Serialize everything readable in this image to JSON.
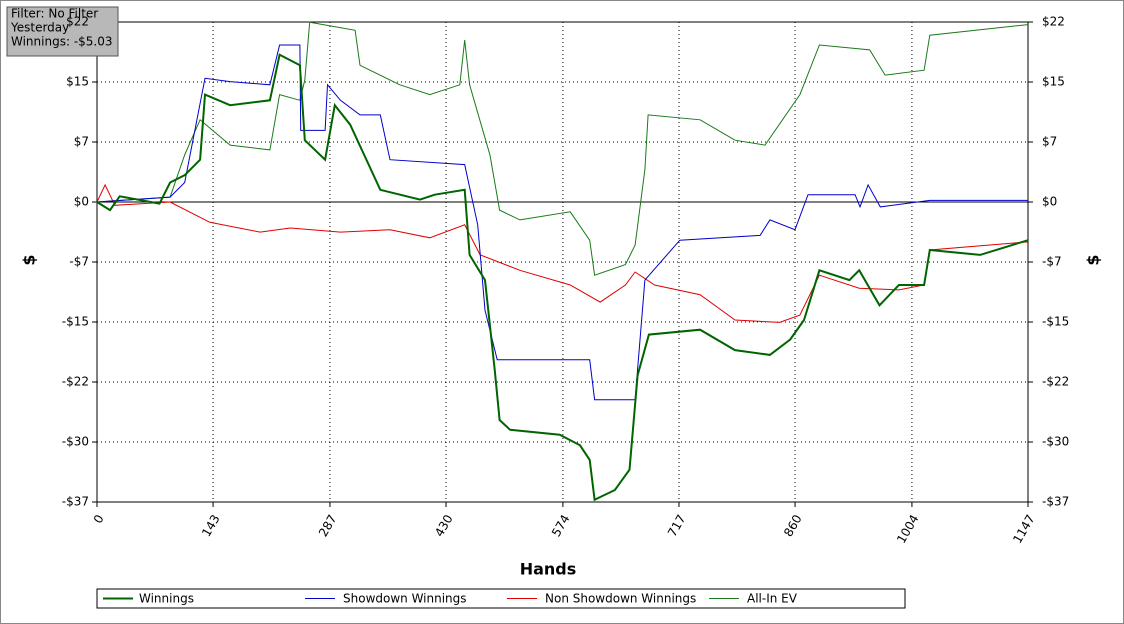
{
  "chart_data": {
    "type": "line",
    "info": [
      "Filter: No Filter",
      "Yesterday",
      "Winnings: -$5.03"
    ],
    "x_label": "Hands",
    "y_label": "$",
    "xlim": [
      0,
      1147
    ],
    "xticks": [
      0,
      143,
      287,
      430,
      574,
      717,
      860,
      1004,
      1147
    ],
    "ylim": [
      -36.875,
      22.125
    ],
    "yticks": [
      {
        "value": -36.875,
        "label": "-$37"
      },
      {
        "value": -29.5,
        "label": "-$30"
      },
      {
        "value": -22.125,
        "label": "-$22"
      },
      {
        "value": -14.75,
        "label": "-$15"
      },
      {
        "value": -7.375,
        "label": "-$7"
      },
      {
        "value": 0,
        "label": "$0"
      },
      {
        "value": 7.375,
        "label": "$7"
      },
      {
        "value": 14.75,
        "label": "$15"
      },
      {
        "value": 22.125,
        "label": "$22"
      }
    ],
    "grid": true,
    "series": [
      {
        "name": "Winnings",
        "color": "#006400",
        "width": 2,
        "x": [
          0,
          16,
          28,
          77,
          90,
          108,
          127,
          133,
          164,
          213,
          225,
          250,
          256,
          281,
          293,
          312,
          349,
          398,
          416,
          453,
          459,
          478,
          490,
          496,
          509,
          570,
          595,
          607,
          613,
          638,
          656,
          666,
          680,
          743,
          786,
          829,
          854,
          871,
          890,
          927,
          939,
          964,
          988,
          1019,
          1026,
          1088,
          1147
        ],
        "values": [
          0,
          -1,
          0.7,
          -0.2,
          2.4,
          3.3,
          5.2,
          13.2,
          11.9,
          12.5,
          18.1,
          16.8,
          7.6,
          5.2,
          11.9,
          9.5,
          1.5,
          0.3,
          0.9,
          1.5,
          -6.5,
          -9.6,
          -20.6,
          -26.8,
          -28,
          -28.6,
          -29.9,
          -31.7,
          -36.6,
          -35.4,
          -32.9,
          -21.3,
          -16.3,
          -15.7,
          -18.2,
          -18.8,
          -16.9,
          -14.5,
          -8.4,
          -9.6,
          -8.4,
          -12.7,
          -10.2,
          -10.2,
          -5.9,
          -6.5,
          -4.7
        ]
      },
      {
        "name": "Showdown Winnings",
        "color": "#0000cc",
        "width": 1,
        "x": [
          0,
          90,
          108,
          133,
          164,
          213,
          225,
          250,
          251,
          281,
          284,
          300,
          324,
          349,
          361,
          453,
          469,
          478,
          493,
          607,
          613,
          663,
          675,
          718,
          817,
          829,
          860,
          876,
          934,
          940,
          950,
          965,
          1026,
          1147
        ],
        "values": [
          0,
          0.6,
          2.4,
          15.2,
          14.8,
          14.4,
          19.3,
          19.3,
          8.8,
          8.8,
          14.4,
          12.5,
          10.7,
          10.7,
          5.2,
          4.6,
          -2.8,
          -13.3,
          -19.4,
          -19.4,
          -24.3,
          -24.3,
          -9.6,
          -4.7,
          -4.1,
          -2.2,
          -3.4,
          0.9,
          0.9,
          -0.6,
          2.1,
          -0.6,
          0.2,
          0.2
        ]
      },
      {
        "name": "Non Showdown Winnings",
        "color": "#e00000",
        "width": 1,
        "x": [
          0,
          10,
          22,
          90,
          139,
          201,
          238,
          300,
          361,
          410,
          453,
          472,
          521,
          583,
          620,
          651,
          663,
          687,
          743,
          786,
          841,
          866,
          890,
          939,
          988,
          1019,
          1026,
          1147
        ],
        "values": [
          0,
          2.1,
          -0.4,
          0,
          -2.5,
          -3.7,
          -3.2,
          -3.7,
          -3.4,
          -4.4,
          -2.8,
          -6.5,
          -8.4,
          -10.2,
          -12.3,
          -10.2,
          -8.6,
          -10.2,
          -11.4,
          -14.5,
          -14.8,
          -13.9,
          -9,
          -10.6,
          -10.8,
          -10.2,
          -5.9,
          -4.9
        ]
      },
      {
        "name": "All-In EV",
        "color": "#1a7a1a",
        "width": 1,
        "x": [
          0,
          90,
          108,
          127,
          164,
          213,
          225,
          250,
          256,
          262,
          318,
          324,
          373,
          410,
          447,
          453,
          459,
          484,
          496,
          521,
          583,
          607,
          613,
          651,
          663,
          675,
          679,
          743,
          786,
          823,
          866,
          890,
          952,
          971,
          1019,
          1026,
          1147
        ],
        "values": [
          0,
          0.6,
          5.8,
          10.1,
          7,
          6.4,
          13.2,
          12.5,
          15,
          22.1,
          21.1,
          16.8,
          14.4,
          13.2,
          14.4,
          19.9,
          14.4,
          5.8,
          -1,
          -2.2,
          -1.2,
          -4.7,
          -9,
          -7.7,
          -5.3,
          4,
          10.7,
          10.1,
          7.6,
          7,
          13.2,
          19.3,
          18.7,
          15.6,
          16.2,
          20.5,
          21.8
        ]
      }
    ]
  }
}
